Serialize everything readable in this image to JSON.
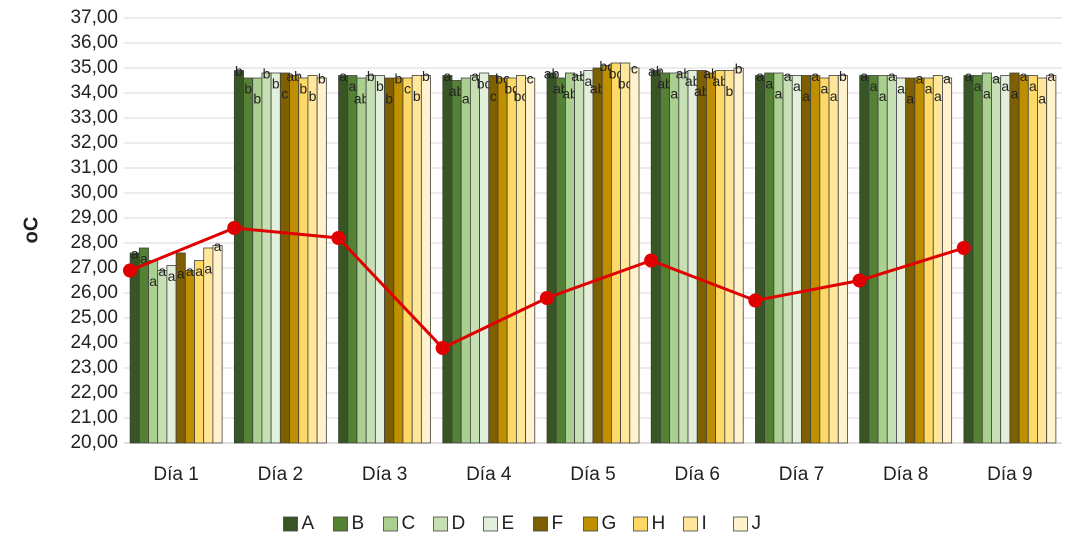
{
  "chart_data": {
    "type": "bar",
    "y_label": "oC",
    "categories": [
      "Día 1",
      "Día 2",
      "Día 3",
      "Día 4",
      "Día 5",
      "Día 6",
      "Día 7",
      "Día 8",
      "Día 9"
    ],
    "ylim": [
      20,
      37
    ],
    "yticks": [
      {
        "value": 20,
        "label": "20,00"
      },
      {
        "value": 21,
        "label": "21,00"
      },
      {
        "value": 22,
        "label": "22,00"
      },
      {
        "value": 23,
        "label": "23,00"
      },
      {
        "value": 24,
        "label": "24,00"
      },
      {
        "value": 25,
        "label": "25,00"
      },
      {
        "value": 26,
        "label": "26,00"
      },
      {
        "value": 27,
        "label": "27,00"
      },
      {
        "value": 28,
        "label": "28,00"
      },
      {
        "value": 29,
        "label": "29,00"
      },
      {
        "value": 30,
        "label": "30,00"
      },
      {
        "value": 31,
        "label": "31,00"
      },
      {
        "value": 32,
        "label": "32,00"
      },
      {
        "value": 33,
        "label": "33,00"
      },
      {
        "value": 34,
        "label": "34,00"
      },
      {
        "value": 35,
        "label": "35,00"
      },
      {
        "value": 36,
        "label": "36,00"
      },
      {
        "value": 37,
        "label": "37,00"
      }
    ],
    "grid": true,
    "legend": "bottom",
    "series": [
      {
        "name": "A",
        "color": "#375623",
        "values": [
          27.6,
          34.9,
          34.7,
          34.7,
          34.8,
          34.9,
          34.7,
          34.7,
          34.7
        ],
        "letters": [
          "a",
          "b",
          "a",
          "a",
          "ab",
          "ab",
          "a",
          "a",
          "a"
        ]
      },
      {
        "name": "B",
        "color": "#548235",
        "values": [
          27.8,
          34.6,
          34.7,
          34.5,
          34.6,
          34.8,
          34.8,
          34.7,
          34.7
        ],
        "letters": [
          "a",
          "b",
          "a",
          "ab",
          "ab",
          "ab",
          "a",
          "a",
          "a"
        ]
      },
      {
        "name": "C",
        "color": "#a9d08e",
        "values": [
          27.3,
          34.6,
          34.6,
          34.6,
          34.8,
          34.8,
          34.8,
          34.7,
          34.8
        ],
        "letters": [
          "a",
          "b",
          "ab",
          "a",
          "ab",
          "a",
          "a",
          "a",
          "a"
        ]
      },
      {
        "name": "D",
        "color": "#c6e0b4",
        "values": [
          26.9,
          34.8,
          34.7,
          34.7,
          34.7,
          34.8,
          34.7,
          34.7,
          34.6
        ],
        "letters": [
          "a",
          "b",
          "b",
          "a",
          "ab",
          "ab",
          "a",
          "a",
          "a"
        ]
      },
      {
        "name": "E",
        "color": "#e2efda",
        "values": [
          27.1,
          34.8,
          34.7,
          34.8,
          34.9,
          34.9,
          34.7,
          34.6,
          34.7
        ],
        "letters": [
          "a",
          "b",
          "b",
          "bc",
          "a",
          "ab",
          "a",
          "a",
          "a"
        ]
      },
      {
        "name": "F",
        "color": "#7f6000",
        "values": [
          27.6,
          34.8,
          34.6,
          34.7,
          35.0,
          34.9,
          34.7,
          34.6,
          34.8
        ],
        "letters": [
          "a",
          "c",
          "b",
          "c",
          "ab",
          "ab",
          "a",
          "a",
          "a"
        ]
      },
      {
        "name": "G",
        "color": "#bf8f00",
        "values": [
          26.9,
          34.7,
          34.6,
          34.6,
          35.1,
          34.8,
          34.7,
          34.6,
          34.7
        ],
        "letters": [
          "a",
          "ab",
          "b",
          "bc",
          "bc",
          "ab",
          "a",
          "a",
          "a"
        ]
      },
      {
        "name": "H",
        "color": "#ffd966",
        "values": [
          27.3,
          34.6,
          34.6,
          34.6,
          35.2,
          34.9,
          34.6,
          34.6,
          34.7
        ],
        "letters": [
          "a",
          "b",
          "c",
          "bc",
          "bc",
          "ab",
          "a",
          "a",
          "a"
        ]
      },
      {
        "name": "I",
        "color": "#ffe699",
        "values": [
          27.8,
          34.7,
          34.7,
          34.7,
          35.2,
          34.9,
          34.7,
          34.7,
          34.6
        ],
        "letters": [
          "a",
          "b",
          "b",
          "bc",
          "bc",
          "b",
          "a",
          "a",
          "a"
        ]
      },
      {
        "name": "J",
        "color": "#fff2cc",
        "values": [
          27.9,
          34.6,
          34.7,
          34.6,
          35.0,
          35.0,
          34.7,
          34.6,
          34.7
        ],
        "letters": [
          "a",
          "b",
          "b",
          "c",
          "c",
          "b",
          "b",
          "a",
          "a"
        ]
      }
    ],
    "line": {
      "type": "line",
      "color": "#e00000",
      "values": [
        26.9,
        28.6,
        28.2,
        23.8,
        25.8,
        27.3,
        25.7,
        26.5,
        27.8
      ]
    }
  }
}
